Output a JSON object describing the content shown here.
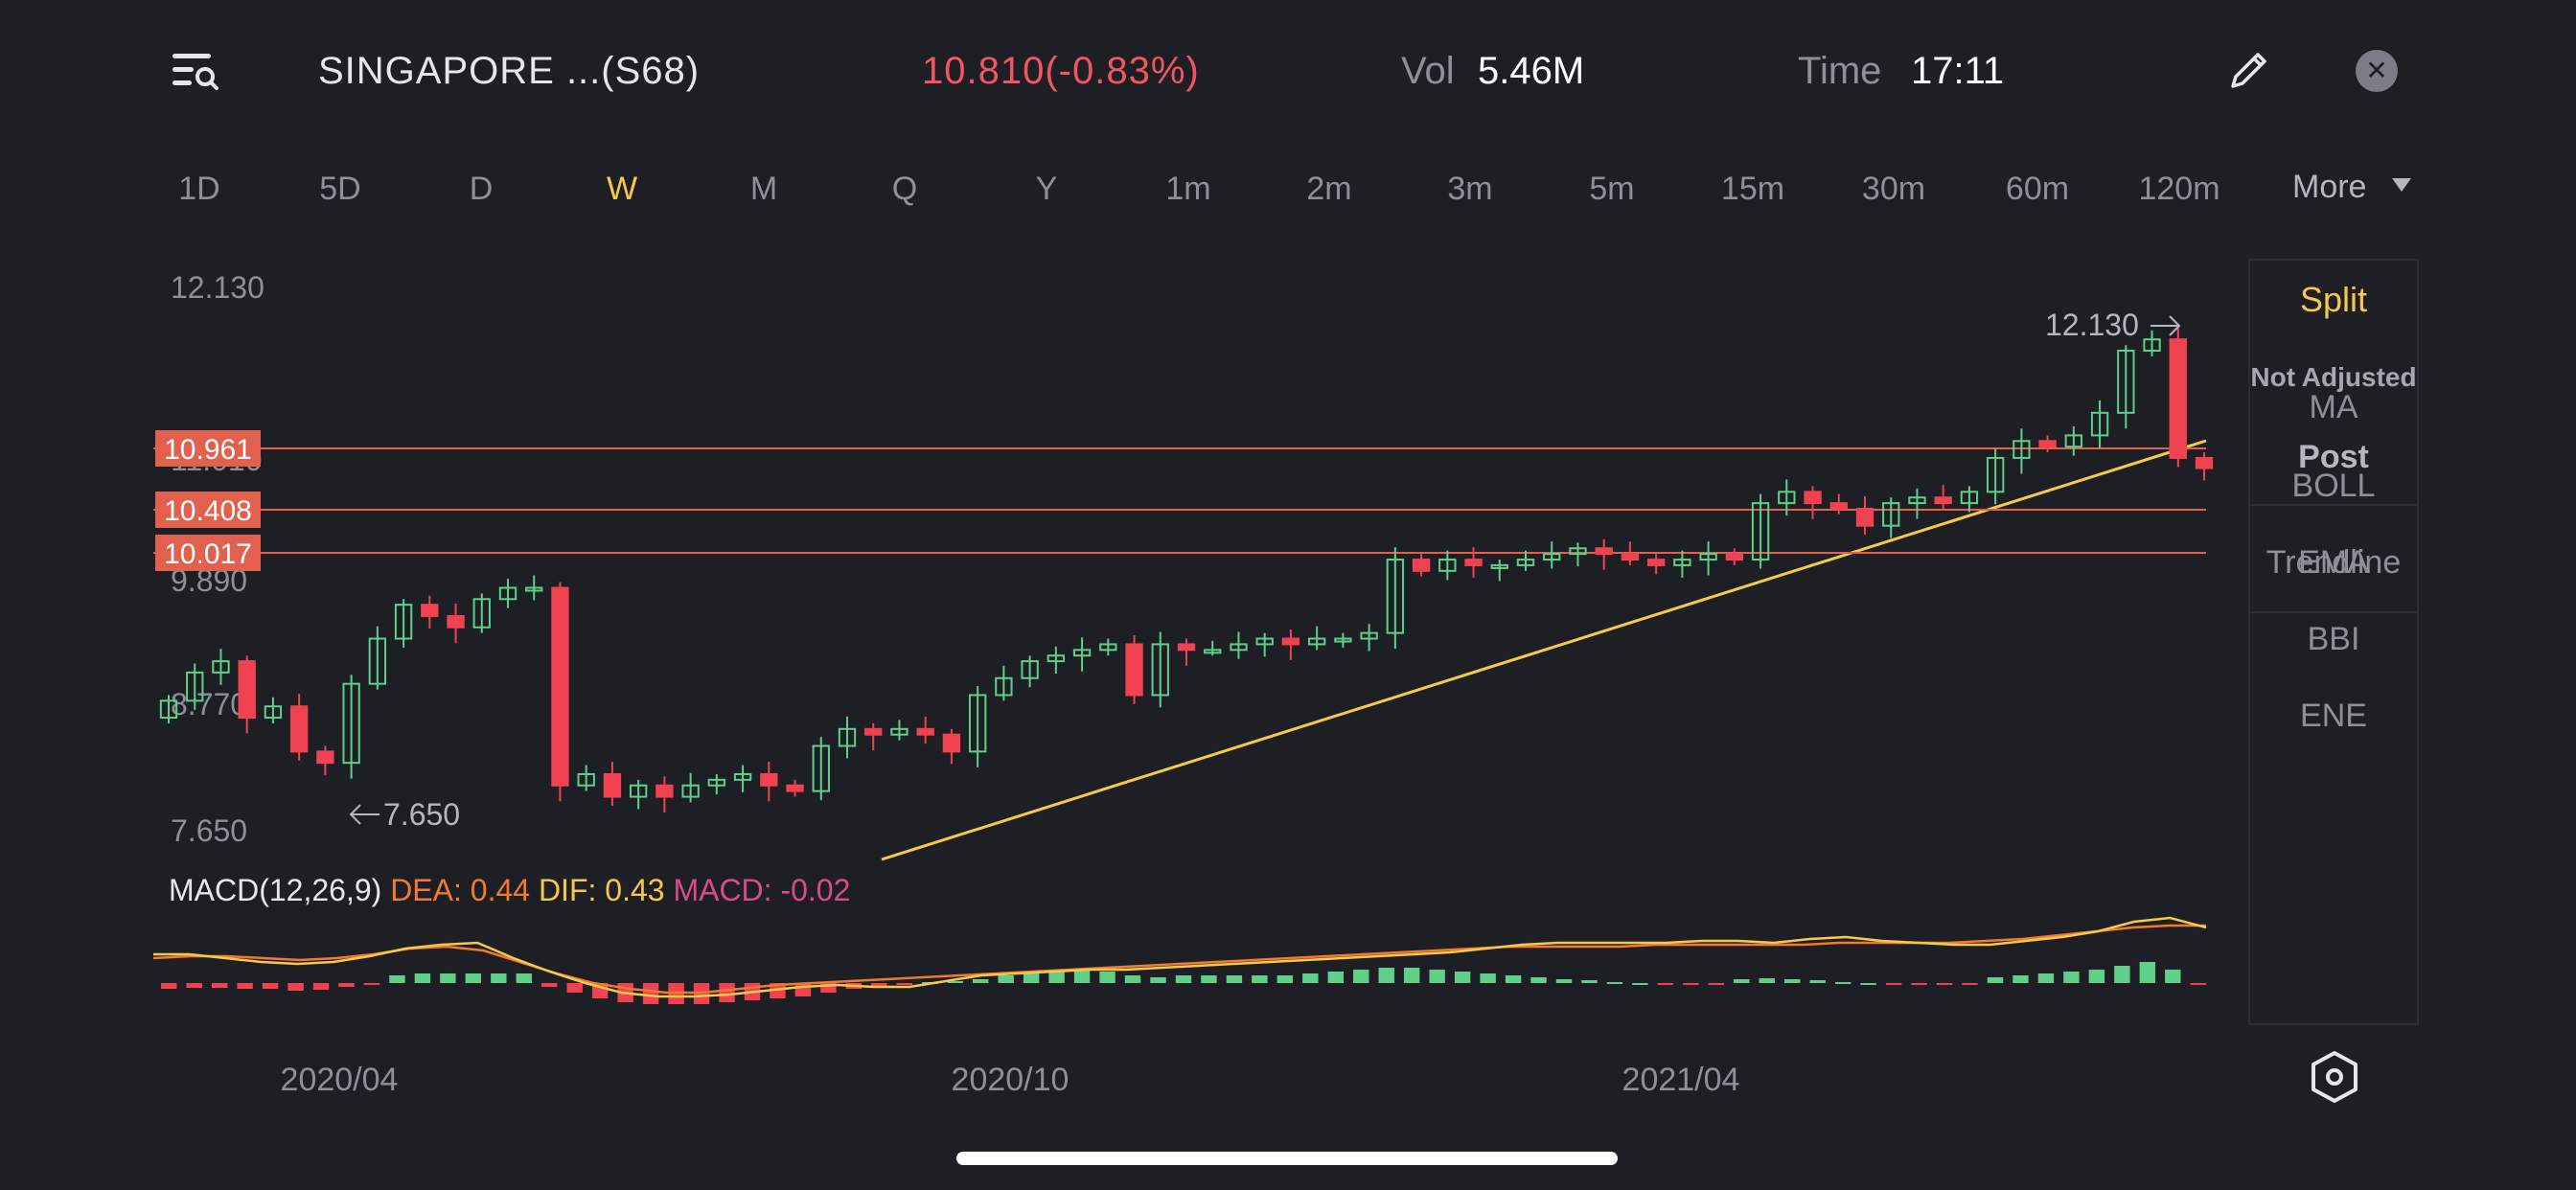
{
  "header": {
    "title": "SINGAPORE ...(S68)",
    "price": "10.810(-0.83%)",
    "vol_label": "Vol",
    "vol_value": "5.46M",
    "time_label": "Time",
    "time_value": "17:11",
    "close_glyph": "✕",
    "icons": [
      "menu-search-icon",
      "pencil-icon",
      "close-icon"
    ]
  },
  "intervals": [
    "1D",
    "5D",
    "D",
    "W",
    "M",
    "Q",
    "Y",
    "1m",
    "2m",
    "3m",
    "5m",
    "15m",
    "30m",
    "60m",
    "120m"
  ],
  "active_interval": "W",
  "more_label": "More",
  "side_panel": {
    "split": "Split",
    "not_adjusted": "Not Adjusted",
    "post": "Post",
    "trendline": "Trendline",
    "indicators": [
      "MA",
      "BOLL",
      "EMA",
      "BBI",
      "ENE"
    ]
  },
  "chart_data": {
    "type": "candlestick",
    "price_axis_labels": [
      "12.130",
      "11.010",
      "9.890",
      "8.770",
      "7.650"
    ],
    "price_range": [
      7.65,
      12.13
    ],
    "max_label": "12.130",
    "min_label": "7.650",
    "horizontal_levels": [
      "10.961",
      "10.408",
      "10.017"
    ],
    "date_labels": [
      "2020/04",
      "2020/10",
      "2021/04"
    ],
    "trendline": true,
    "weekly_candles_close_approx": [
      8.75,
      9.0,
      9.1,
      8.6,
      8.7,
      8.3,
      8.2,
      8.9,
      9.3,
      9.6,
      9.5,
      9.4,
      9.65,
      9.75,
      9.75,
      8.0,
      8.1,
      7.9,
      8.0,
      7.9,
      8.0,
      8.05,
      8.1,
      8.0,
      7.95,
      8.35,
      8.5,
      8.45,
      8.5,
      8.45,
      8.3,
      8.8,
      8.95,
      9.1,
      9.15,
      9.2,
      9.25,
      8.8,
      9.25,
      9.2,
      9.2,
      9.25,
      9.3,
      9.25,
      9.3,
      9.3,
      9.35,
      10.0,
      9.9,
      10.0,
      9.95,
      9.95,
      10.0,
      10.05,
      10.1,
      10.05,
      10.0,
      9.95,
      10.0,
      10.05,
      10.0,
      10.5,
      10.6,
      10.5,
      10.45,
      10.3,
      10.5,
      10.55,
      10.5,
      10.6,
      10.9,
      11.05,
      11.0,
      11.1,
      11.3,
      11.85,
      11.95,
      10.9,
      10.81
    ],
    "macd": {
      "label": "MACD(12,26,9)",
      "dea_label": "DEA: 0.44",
      "dif_label": "DIF: 0.43",
      "macd_label": "MACD: -0.02",
      "dea": 0.44,
      "dif": 0.43,
      "macd": -0.02
    }
  },
  "colors": {
    "background": "#1e1f25",
    "up": "#5fd08a",
    "down": "#f04250",
    "level_line": "#e2604e",
    "trendline": "#f7c948",
    "active": "#f7c948",
    "dea": "#f07a32",
    "dif": "#f7c948",
    "macd": "#d94c8a"
  }
}
